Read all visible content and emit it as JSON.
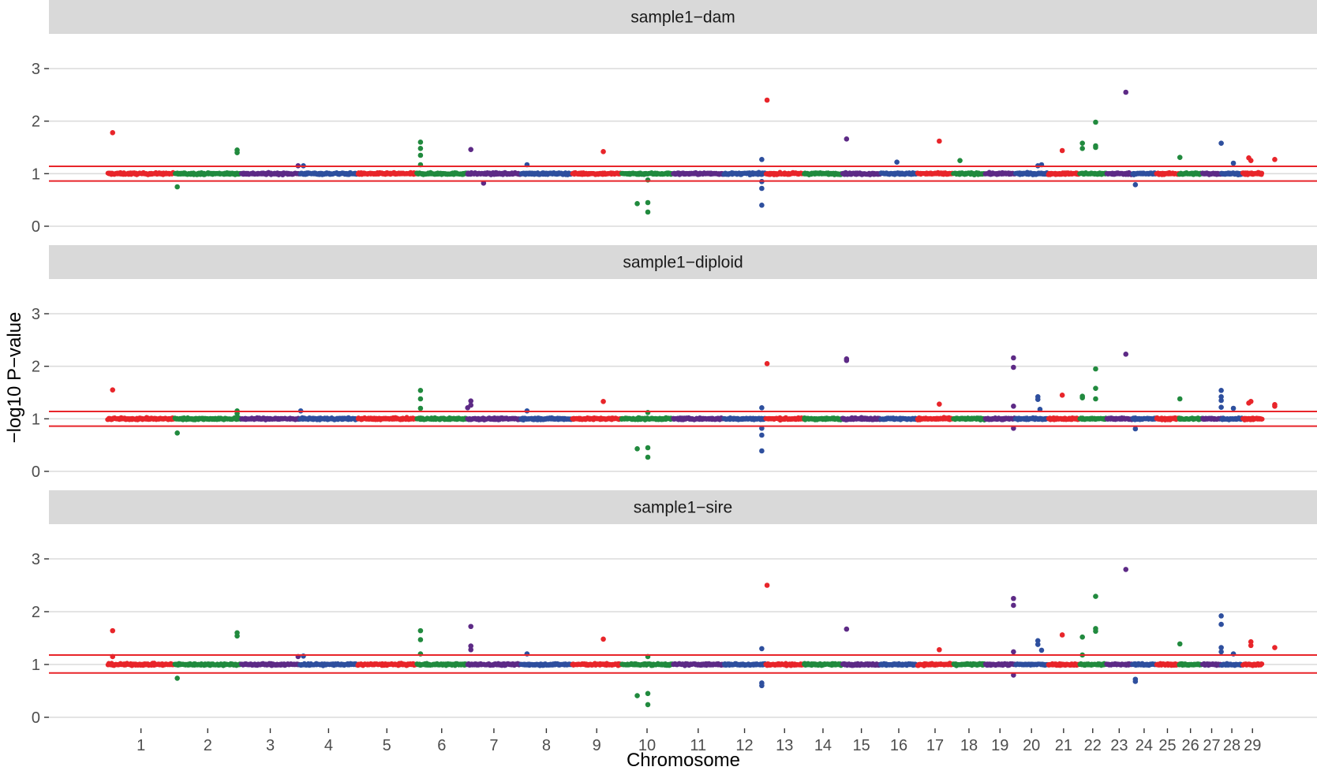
{
  "chart_data": {
    "type": "scatter",
    "subtype": "manhattan",
    "xlabel": "Chromosome",
    "ylabel": "−log10 P−value",
    "ylim": [
      0,
      3.5
    ],
    "yticks": [
      0,
      1,
      2,
      3
    ],
    "grid": true,
    "legend": "none",
    "threshold_lines": {
      "color": "#e8252a"
    },
    "chromosome_colors": [
      "#e8252a",
      "#218a3e",
      "#5d2a86",
      "#2e4f9e"
    ],
    "chromosomes": [
      {
        "label": "1",
        "start": 0.0,
        "end": 1.27
      },
      {
        "label": "2",
        "start": 1.27,
        "end": 2.52
      },
      {
        "label": "3",
        "start": 2.52,
        "end": 3.63
      },
      {
        "label": "4",
        "start": 3.63,
        "end": 4.72
      },
      {
        "label": "5",
        "start": 4.72,
        "end": 5.83
      },
      {
        "label": "6",
        "start": 5.83,
        "end": 6.79
      },
      {
        "label": "7",
        "start": 6.79,
        "end": 7.8
      },
      {
        "label": "8",
        "start": 7.8,
        "end": 8.77
      },
      {
        "label": "9",
        "start": 8.77,
        "end": 9.7
      },
      {
        "label": "10",
        "start": 9.7,
        "end": 10.67
      },
      {
        "label": "11",
        "start": 10.67,
        "end": 11.63
      },
      {
        "label": "12",
        "start": 11.63,
        "end": 12.42
      },
      {
        "label": "13",
        "start": 12.42,
        "end": 13.14
      },
      {
        "label": "14",
        "start": 13.14,
        "end": 13.87
      },
      {
        "label": "15",
        "start": 13.87,
        "end": 14.59
      },
      {
        "label": "16",
        "start": 14.59,
        "end": 15.28
      },
      {
        "label": "17",
        "start": 15.28,
        "end": 15.96
      },
      {
        "label": "18",
        "start": 15.96,
        "end": 16.56
      },
      {
        "label": "19",
        "start": 16.56,
        "end": 17.13
      },
      {
        "label": "20",
        "start": 17.13,
        "end": 17.75
      },
      {
        "label": "21",
        "start": 17.75,
        "end": 18.34
      },
      {
        "label": "22",
        "start": 18.34,
        "end": 18.85
      },
      {
        "label": "23",
        "start": 18.85,
        "end": 19.34
      },
      {
        "label": "24",
        "start": 19.34,
        "end": 19.79
      },
      {
        "label": "25",
        "start": 19.79,
        "end": 20.22
      },
      {
        "label": "26",
        "start": 20.22,
        "end": 20.66
      },
      {
        "label": "27",
        "start": 20.66,
        "end": 21.02
      },
      {
        "label": "28",
        "start": 21.02,
        "end": 21.42
      },
      {
        "label": "29",
        "start": 21.42,
        "end": 21.8
      }
    ],
    "panels": [
      {
        "title": "sample1−dam",
        "thresholds": [
          0.86,
          1.14
        ],
        "points": [
          {
            "x": 0.1,
            "y": 1.78
          },
          {
            "x": 1.32,
            "y": 0.75
          },
          {
            "x": 2.45,
            "y": 1.4
          },
          {
            "x": 2.45,
            "y": 1.45
          },
          {
            "x": 3.6,
            "y": 1.15
          },
          {
            "x": 3.7,
            "y": 1.15
          },
          {
            "x": 5.91,
            "y": 1.35
          },
          {
            "x": 5.91,
            "y": 1.48
          },
          {
            "x": 5.91,
            "y": 1.6
          },
          {
            "x": 5.91,
            "y": 1.17
          },
          {
            "x": 6.86,
            "y": 1.46
          },
          {
            "x": 7.1,
            "y": 0.82
          },
          {
            "x": 7.92,
            "y": 1.17
          },
          {
            "x": 9.36,
            "y": 1.42
          },
          {
            "x": 10.0,
            "y": 0.43
          },
          {
            "x": 10.2,
            "y": 0.27
          },
          {
            "x": 10.2,
            "y": 0.45
          },
          {
            "x": 10.2,
            "y": 0.88
          },
          {
            "x": 12.35,
            "y": 1.27
          },
          {
            "x": 12.35,
            "y": 0.85
          },
          {
            "x": 12.35,
            "y": 0.72
          },
          {
            "x": 12.35,
            "y": 0.4
          },
          {
            "x": 12.45,
            "y": 2.4
          },
          {
            "x": 13.95,
            "y": 1.66
          },
          {
            "x": 14.9,
            "y": 1.22
          },
          {
            "x": 15.7,
            "y": 1.62
          },
          {
            "x": 16.09,
            "y": 1.25
          },
          {
            "x": 17.56,
            "y": 1.15
          },
          {
            "x": 17.63,
            "y": 1.17
          },
          {
            "x": 18.02,
            "y": 1.44
          },
          {
            "x": 18.4,
            "y": 1.58
          },
          {
            "x": 18.4,
            "y": 1.48
          },
          {
            "x": 18.65,
            "y": 1.98
          },
          {
            "x": 18.65,
            "y": 1.53
          },
          {
            "x": 18.65,
            "y": 1.5
          },
          {
            "x": 19.22,
            "y": 2.55
          },
          {
            "x": 19.4,
            "y": 0.79
          },
          {
            "x": 20.24,
            "y": 1.31
          },
          {
            "x": 21.02,
            "y": 1.58
          },
          {
            "x": 21.25,
            "y": 1.2
          },
          {
            "x": 21.54,
            "y": 1.3
          },
          {
            "x": 21.58,
            "y": 1.25
          },
          {
            "x": 22.03,
            "y": 1.27
          }
        ]
      },
      {
        "title": "sample1−diploid",
        "thresholds": [
          0.86,
          1.14
        ],
        "points": [
          {
            "x": 0.1,
            "y": 1.55
          },
          {
            "x": 1.32,
            "y": 0.73
          },
          {
            "x": 2.45,
            "y": 1.15
          },
          {
            "x": 2.45,
            "y": 1.1
          },
          {
            "x": 3.65,
            "y": 1.15
          },
          {
            "x": 5.91,
            "y": 1.54
          },
          {
            "x": 5.91,
            "y": 1.38
          },
          {
            "x": 5.91,
            "y": 1.2
          },
          {
            "x": 6.86,
            "y": 1.34
          },
          {
            "x": 6.86,
            "y": 1.26
          },
          {
            "x": 6.8,
            "y": 1.21
          },
          {
            "x": 7.92,
            "y": 1.15
          },
          {
            "x": 9.36,
            "y": 1.33
          },
          {
            "x": 10.0,
            "y": 0.43
          },
          {
            "x": 10.2,
            "y": 0.27
          },
          {
            "x": 10.2,
            "y": 0.45
          },
          {
            "x": 10.2,
            "y": 1.12
          },
          {
            "x": 12.35,
            "y": 1.21
          },
          {
            "x": 12.35,
            "y": 0.82
          },
          {
            "x": 12.35,
            "y": 0.69
          },
          {
            "x": 12.35,
            "y": 0.39
          },
          {
            "x": 12.45,
            "y": 2.05
          },
          {
            "x": 13.95,
            "y": 2.14
          },
          {
            "x": 13.95,
            "y": 2.11
          },
          {
            "x": 15.7,
            "y": 1.28
          },
          {
            "x": 17.1,
            "y": 2.16
          },
          {
            "x": 17.1,
            "y": 1.98
          },
          {
            "x": 17.1,
            "y": 1.24
          },
          {
            "x": 17.1,
            "y": 0.82
          },
          {
            "x": 17.56,
            "y": 1.42
          },
          {
            "x": 17.56,
            "y": 1.37
          },
          {
            "x": 17.6,
            "y": 1.18
          },
          {
            "x": 18.02,
            "y": 1.45
          },
          {
            "x": 18.4,
            "y": 1.43
          },
          {
            "x": 18.4,
            "y": 1.4
          },
          {
            "x": 18.65,
            "y": 1.95
          },
          {
            "x": 18.65,
            "y": 1.58
          },
          {
            "x": 18.65,
            "y": 1.38
          },
          {
            "x": 19.22,
            "y": 2.23
          },
          {
            "x": 19.4,
            "y": 0.81
          },
          {
            "x": 20.24,
            "y": 1.38
          },
          {
            "x": 21.02,
            "y": 1.54
          },
          {
            "x": 21.02,
            "y": 1.42
          },
          {
            "x": 21.02,
            "y": 1.35
          },
          {
            "x": 21.02,
            "y": 1.22
          },
          {
            "x": 21.25,
            "y": 1.2
          },
          {
            "x": 21.54,
            "y": 1.3
          },
          {
            "x": 21.58,
            "y": 1.33
          },
          {
            "x": 22.03,
            "y": 1.27
          },
          {
            "x": 22.03,
            "y": 1.24
          }
        ]
      },
      {
        "title": "sample1−sire",
        "thresholds": [
          0.84,
          1.18
        ],
        "points": [
          {
            "x": 0.1,
            "y": 1.64
          },
          {
            "x": 0.1,
            "y": 1.15
          },
          {
            "x": 1.32,
            "y": 0.74
          },
          {
            "x": 2.45,
            "y": 1.6
          },
          {
            "x": 2.45,
            "y": 1.54
          },
          {
            "x": 3.6,
            "y": 1.15
          },
          {
            "x": 3.7,
            "y": 1.16
          },
          {
            "x": 5.91,
            "y": 1.64
          },
          {
            "x": 5.91,
            "y": 1.47
          },
          {
            "x": 5.91,
            "y": 1.2
          },
          {
            "x": 6.86,
            "y": 1.72
          },
          {
            "x": 6.86,
            "y": 1.35
          },
          {
            "x": 6.86,
            "y": 1.28
          },
          {
            "x": 7.92,
            "y": 1.2
          },
          {
            "x": 9.36,
            "y": 1.48
          },
          {
            "x": 10.0,
            "y": 0.41
          },
          {
            "x": 10.2,
            "y": 0.24
          },
          {
            "x": 10.2,
            "y": 0.45
          },
          {
            "x": 10.2,
            "y": 1.15
          },
          {
            "x": 12.35,
            "y": 1.3
          },
          {
            "x": 12.35,
            "y": 0.65
          },
          {
            "x": 12.35,
            "y": 0.6
          },
          {
            "x": 12.45,
            "y": 2.5
          },
          {
            "x": 13.95,
            "y": 1.67
          },
          {
            "x": 15.7,
            "y": 1.28
          },
          {
            "x": 17.1,
            "y": 2.25
          },
          {
            "x": 17.1,
            "y": 2.12
          },
          {
            "x": 17.1,
            "y": 1.24
          },
          {
            "x": 17.1,
            "y": 0.8
          },
          {
            "x": 17.56,
            "y": 1.45
          },
          {
            "x": 17.56,
            "y": 1.38
          },
          {
            "x": 17.63,
            "y": 1.27
          },
          {
            "x": 18.02,
            "y": 1.56
          },
          {
            "x": 18.4,
            "y": 1.52
          },
          {
            "x": 18.4,
            "y": 1.18
          },
          {
            "x": 18.65,
            "y": 2.29
          },
          {
            "x": 18.65,
            "y": 1.68
          },
          {
            "x": 18.65,
            "y": 1.63
          },
          {
            "x": 19.22,
            "y": 2.8
          },
          {
            "x": 19.4,
            "y": 0.72
          },
          {
            "x": 19.4,
            "y": 0.68
          },
          {
            "x": 20.24,
            "y": 1.39
          },
          {
            "x": 21.02,
            "y": 1.92
          },
          {
            "x": 21.02,
            "y": 1.76
          },
          {
            "x": 21.02,
            "y": 1.32
          },
          {
            "x": 21.02,
            "y": 1.24
          },
          {
            "x": 21.25,
            "y": 1.2
          },
          {
            "x": 21.58,
            "y": 1.43
          },
          {
            "x": 21.58,
            "y": 1.36
          },
          {
            "x": 22.03,
            "y": 1.32
          }
        ]
      }
    ]
  }
}
